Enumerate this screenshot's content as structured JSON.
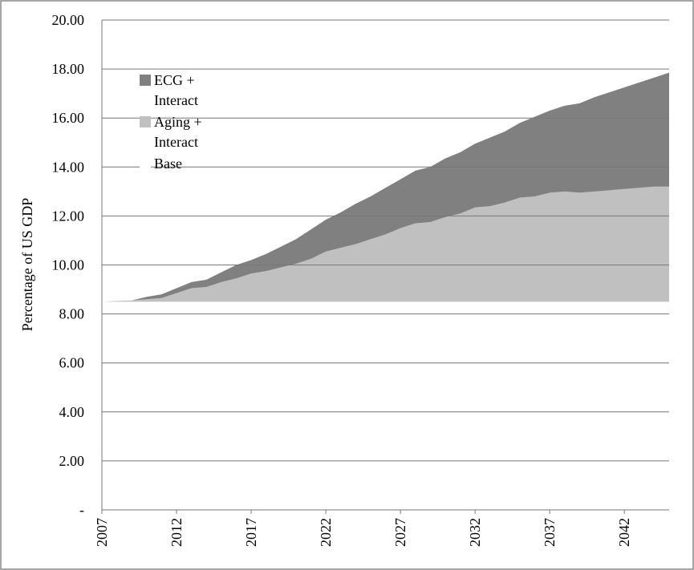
{
  "chart_data": {
    "type": "area",
    "stacked": true,
    "y_label": "Percentage of US GDP",
    "x": [
      2007,
      2008,
      2009,
      2010,
      2011,
      2012,
      2013,
      2014,
      2015,
      2016,
      2017,
      2018,
      2019,
      2020,
      2021,
      2022,
      2023,
      2024,
      2025,
      2026,
      2027,
      2028,
      2029,
      2030,
      2031,
      2032,
      2033,
      2034,
      2035,
      2036,
      2037,
      2038,
      2039,
      2040,
      2041,
      2042,
      2043,
      2044,
      2045
    ],
    "xlim": [
      2007,
      2045
    ],
    "xticks": [
      2007,
      2012,
      2017,
      2022,
      2027,
      2032,
      2037,
      2042
    ],
    "ylim": [
      0,
      20
    ],
    "yticks": [
      {
        "value": 0,
        "label": "-"
      },
      {
        "value": 2,
        "label": "2.00"
      },
      {
        "value": 4,
        "label": "4.00"
      },
      {
        "value": 6,
        "label": "6.00"
      },
      {
        "value": 8,
        "label": "8.00"
      },
      {
        "value": 10,
        "label": "10.00"
      },
      {
        "value": 12,
        "label": "12.00"
      },
      {
        "value": 14,
        "label": "14.00"
      },
      {
        "value": 16,
        "label": "16.00"
      },
      {
        "value": 18,
        "label": "18.00"
      },
      {
        "value": 20,
        "label": "20.00"
      }
    ],
    "grid": true,
    "legend": "upper left",
    "series": [
      {
        "name": "Base",
        "color": "#ffffff",
        "values": [
          8.5,
          8.5,
          8.5,
          8.5,
          8.5,
          8.5,
          8.5,
          8.5,
          8.5,
          8.5,
          8.5,
          8.5,
          8.5,
          8.5,
          8.5,
          8.5,
          8.5,
          8.5,
          8.5,
          8.5,
          8.5,
          8.5,
          8.5,
          8.5,
          8.5,
          8.5,
          8.5,
          8.5,
          8.5,
          8.5,
          8.5,
          8.5,
          8.5,
          8.5,
          8.5,
          8.5,
          8.5,
          8.5,
          8.5
        ]
      },
      {
        "name": "Aging + Interact",
        "color": "#c0c0c0",
        "values": [
          0,
          0.03,
          0.05,
          0.1,
          0.15,
          0.35,
          0.55,
          0.6,
          0.8,
          0.95,
          1.15,
          1.25,
          1.4,
          1.55,
          1.75,
          2.05,
          2.2,
          2.35,
          2.55,
          2.75,
          3.0,
          3.2,
          3.25,
          3.45,
          3.6,
          3.85,
          3.9,
          4.05,
          4.25,
          4.3,
          4.45,
          4.5,
          4.45,
          4.5,
          4.55,
          4.6,
          4.65,
          4.7,
          4.7
        ]
      },
      {
        "name": "ECG + Interact",
        "color": "#808080",
        "values": [
          0,
          0,
          0,
          0.1,
          0.15,
          0.2,
          0.25,
          0.3,
          0.4,
          0.55,
          0.55,
          0.7,
          0.85,
          1.0,
          1.2,
          1.3,
          1.45,
          1.65,
          1.75,
          1.9,
          2.0,
          2.15,
          2.25,
          2.4,
          2.5,
          2.6,
          2.8,
          2.9,
          3.05,
          3.25,
          3.35,
          3.5,
          3.65,
          3.85,
          4.0,
          4.15,
          4.3,
          4.45,
          4.65
        ]
      }
    ]
  }
}
